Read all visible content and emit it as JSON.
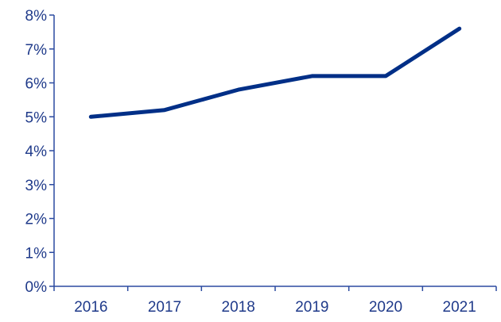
{
  "chart_data": {
    "type": "line",
    "title": "",
    "xlabel": "",
    "ylabel": "",
    "categories": [
      "2016",
      "2017",
      "2018",
      "2019",
      "2020",
      "2021"
    ],
    "series": [
      {
        "values": [
          5.0,
          5.2,
          5.8,
          6.2,
          6.2,
          7.6
        ]
      }
    ],
    "y_ticks": [
      "0%",
      "1%",
      "2%",
      "3%",
      "4%",
      "5%",
      "6%",
      "7%",
      "8%"
    ],
    "ylim": [
      0,
      8
    ],
    "grid": false,
    "legend": "none",
    "colors": {
      "line": "#002f87",
      "axis": "#2b4aa0",
      "text": "#1f3a8a"
    }
  }
}
